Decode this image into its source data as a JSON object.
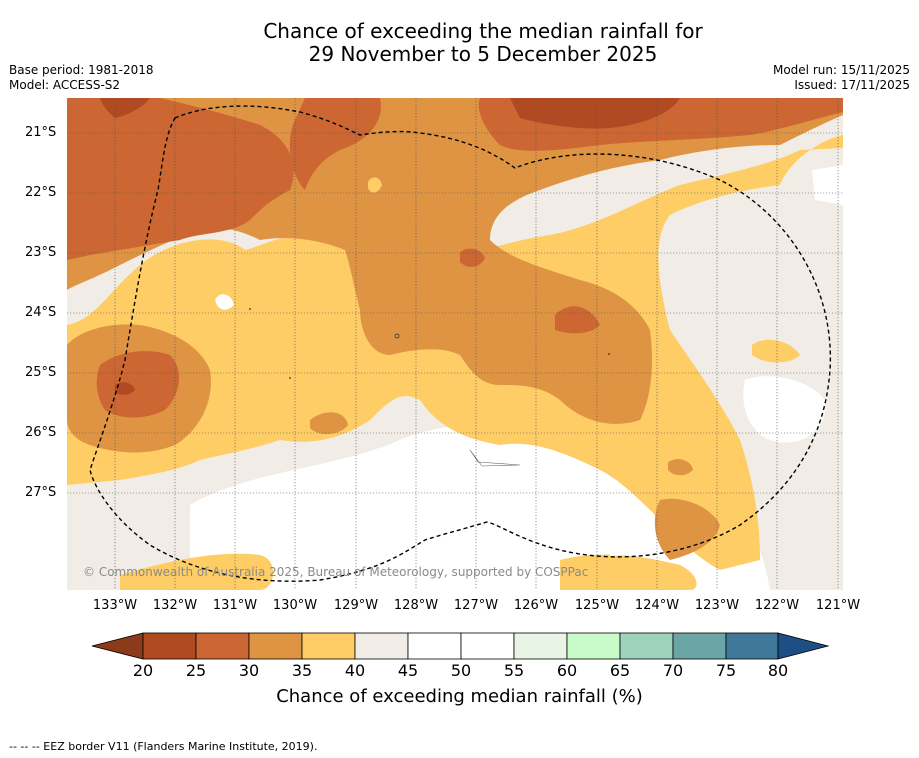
{
  "title": {
    "line1": "Chance of exceeding the median rainfall for",
    "line2": "29 November to 5 December 2025"
  },
  "meta": {
    "base_period": "Base period: 1981-2018",
    "model": "Model: ACCESS-S2",
    "model_run": "Model run: 15/11/2025",
    "issued": "Issued: 17/11/2025"
  },
  "map": {
    "lat_labels": [
      "21°S",
      "22°S",
      "23°S",
      "24°S",
      "25°S",
      "26°S",
      "27°S"
    ],
    "lon_labels": [
      "133°W",
      "132°W",
      "131°W",
      "130°W",
      "129°W",
      "128°W",
      "127°W",
      "126°W",
      "125°W",
      "124°W",
      "123°W",
      "122°W",
      "121°W"
    ],
    "copyright": "© Commonwealth of Australia 2025, Bureau of Meteorology, supported by COSPPac"
  },
  "colorbar": {
    "ticks": [
      "20",
      "25",
      "30",
      "35",
      "40",
      "45",
      "50",
      "55",
      "60",
      "65",
      "70",
      "75",
      "80"
    ],
    "label": "Chance of exceeding median rainfall (%)",
    "colors": {
      "under": "#8c3a1a",
      "c20_25": "#b04a22",
      "c25_30": "#cc6632",
      "c30_35": "#de9443",
      "c35_40": "#fecd66",
      "c40_45": "#f1ede6",
      "c45_50": "#ffffff",
      "c50_55": "#ffffff",
      "c55_60": "#e8f4e6",
      "c60_65": "#c9fbc8",
      "c65_70": "#9fd3bc",
      "c70_75": "#6ba5a6",
      "c75_80": "#3f7899",
      "over": "#1d4f84"
    }
  },
  "footnote": "--  --  -- EEZ border V11 (Flanders Marine Institute, 2019)."
}
